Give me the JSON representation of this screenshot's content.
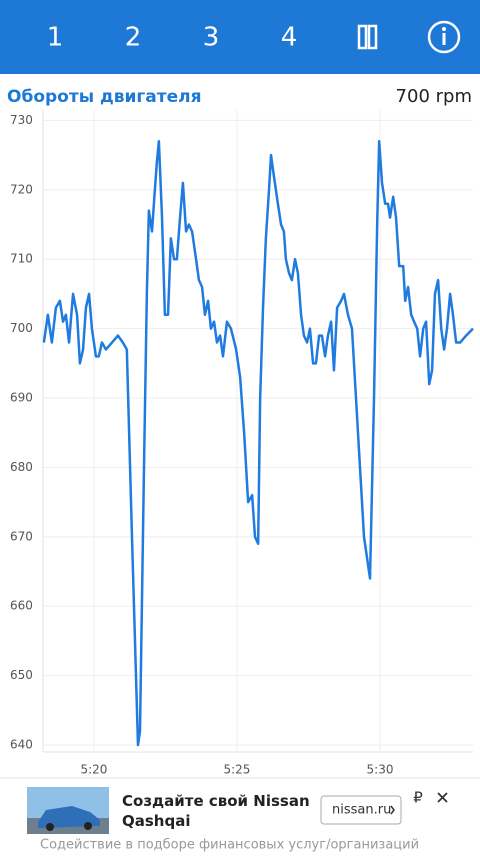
{
  "toolbar": {
    "tabs": [
      "1",
      "2",
      "3",
      "4"
    ]
  },
  "header": {
    "title": "Обороты двигателя",
    "reading": "700 rpm"
  },
  "chart_data": {
    "type": "line",
    "color": "#1f7be0",
    "grid": true,
    "xlim": [
      318.22,
      333.25
    ],
    "ylim": [
      639,
      731.5
    ],
    "xticks": [
      {
        "value": 320,
        "label": "5:20"
      },
      {
        "value": 325,
        "label": "5:25"
      },
      {
        "value": 330,
        "label": "5:30"
      }
    ],
    "yticks": [
      640,
      650,
      660,
      670,
      680,
      690,
      700,
      710,
      720,
      730
    ],
    "x": [
      318.25,
      318.39,
      318.53,
      318.67,
      318.81,
      318.92,
      319.02,
      319.13,
      319.27,
      319.41,
      319.51,
      319.62,
      319.72,
      319.83,
      319.93,
      320.07,
      320.17,
      320.28,
      320.42,
      320.63,
      320.84,
      321.01,
      321.15,
      321.33,
      321.47,
      321.54,
      321.61,
      321.75,
      321.85,
      321.92,
      322.03,
      322.13,
      322.2,
      322.27,
      322.38,
      322.48,
      322.59,
      322.69,
      322.8,
      322.9,
      323.01,
      323.11,
      323.22,
      323.32,
      323.43,
      323.57,
      323.67,
      323.78,
      323.88,
      323.99,
      324.09,
      324.2,
      324.3,
      324.41,
      324.51,
      324.65,
      324.79,
      324.97,
      325.11,
      325.25,
      325.39,
      325.53,
      325.63,
      325.74,
      325.81,
      325.91,
      326.01,
      326.12,
      326.19,
      326.29,
      326.43,
      326.54,
      326.64,
      326.71,
      326.82,
      326.92,
      327.03,
      327.13,
      327.24,
      327.34,
      327.45,
      327.55,
      327.66,
      327.76,
      327.87,
      327.97,
      328.08,
      328.18,
      328.29,
      328.39,
      328.5,
      328.64,
      328.74,
      328.88,
      329.02,
      329.16,
      329.3,
      329.44,
      329.65,
      329.79,
      329.9,
      329.97,
      330.07,
      330.18,
      330.28,
      330.35,
      330.46,
      330.56,
      330.67,
      330.81,
      330.88,
      330.98,
      331.09,
      331.19,
      331.3,
      331.4,
      331.51,
      331.61,
      331.72,
      331.82,
      331.92,
      332.03,
      332.14,
      332.24,
      332.34,
      332.45,
      332.55,
      332.66,
      332.8,
      333.01,
      333.25
    ],
    "values": [
      698,
      702,
      698,
      703,
      704,
      701,
      702,
      698,
      705,
      702,
      695,
      697,
      703,
      705,
      700,
      696,
      696,
      698,
      697,
      698,
      699,
      698,
      697,
      670,
      650,
      640,
      642,
      680,
      705,
      717,
      714,
      720,
      724,
      727,
      716,
      702,
      702,
      713,
      710,
      710,
      716,
      721,
      714,
      715,
      714,
      710,
      707,
      706,
      702,
      704,
      700,
      701,
      698,
      699,
      696,
      701,
      700,
      697,
      693,
      685,
      675,
      676,
      670,
      669,
      690,
      703,
      713,
      720,
      725,
      722,
      718,
      715,
      714,
      710,
      708,
      707,
      710,
      708,
      702,
      699,
      698,
      700,
      695,
      695,
      699,
      699,
      696,
      699,
      701,
      694,
      703,
      704,
      705,
      702,
      700,
      690,
      680,
      670,
      664,
      690,
      715,
      727,
      721,
      718,
      718,
      716,
      719,
      716,
      709,
      709,
      704,
      706,
      702,
      701,
      700,
      696,
      700,
      701,
      692,
      694,
      705,
      707,
      700,
      697,
      700,
      705,
      702,
      698,
      698,
      699,
      700
    ]
  },
  "ad": {
    "headline": "Создайте свой Nissan Qashqai",
    "button": "nissan.ru",
    "currency": "₽",
    "disclaimer": "Содействие в подборе финансовых услуг/организаций"
  }
}
